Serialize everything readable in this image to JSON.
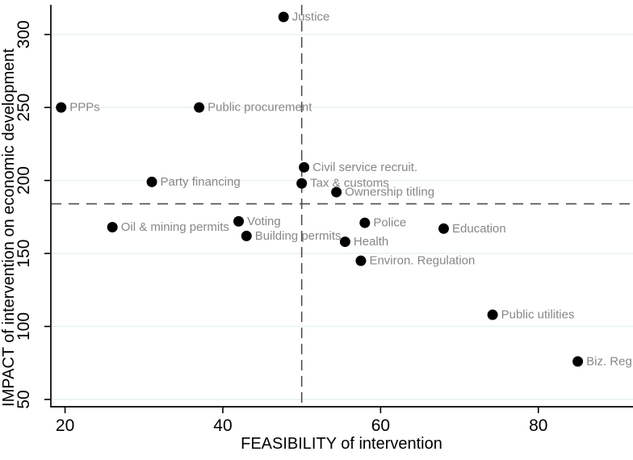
{
  "chart_data": {
    "type": "scatter",
    "title": "",
    "xlabel": "FEASIBILITY of intervention",
    "ylabel": "IMPACT of intervention on economic development",
    "xlim": [
      18.2,
      92
    ],
    "ylim": [
      45,
      320.3
    ],
    "x_ticks": [
      20,
      40,
      60,
      80
    ],
    "y_ticks": [
      50,
      100,
      150,
      200,
      250,
      300
    ],
    "grid": "horizontal-only",
    "legend": "none",
    "reference_lines": {
      "vertical_x": 50,
      "horizontal_y": 184
    },
    "points": [
      {
        "label": "Justice",
        "x": 47.7,
        "y": 312
      },
      {
        "label": "PPPs",
        "x": 19.5,
        "y": 250
      },
      {
        "label": "Public procurement",
        "x": 37,
        "y": 250
      },
      {
        "label": "Civil service recruit.",
        "x": 50.3,
        "y": 209
      },
      {
        "label": "Tax & customs",
        "x": 50,
        "y": 198
      },
      {
        "label": "Party financing",
        "x": 31,
        "y": 199
      },
      {
        "label": "Ownership titling",
        "x": 54.4,
        "y": 192
      },
      {
        "label": "Voting",
        "x": 42,
        "y": 172
      },
      {
        "label": "Oil & mining permits",
        "x": 26,
        "y": 168
      },
      {
        "label": "Building permits",
        "x": 43,
        "y": 162
      },
      {
        "label": "Police",
        "x": 58,
        "y": 171
      },
      {
        "label": "Education",
        "x": 68,
        "y": 167
      },
      {
        "label": "Health",
        "x": 55.5,
        "y": 158
      },
      {
        "label": "Environ. Regulation",
        "x": 57.5,
        "y": 145
      },
      {
        "label": "Public utilities",
        "x": 74.2,
        "y": 108
      },
      {
        "label": "Biz. Reg",
        "x": 85,
        "y": 76
      }
    ],
    "colors": {
      "marker": "#000000",
      "marker_label": "#878787",
      "grid_line": "#eaf2f3",
      "reference_line": "#4d4d4d",
      "axis_line": "#000000",
      "tick_label": "#000000",
      "background": "#ffffff"
    }
  }
}
